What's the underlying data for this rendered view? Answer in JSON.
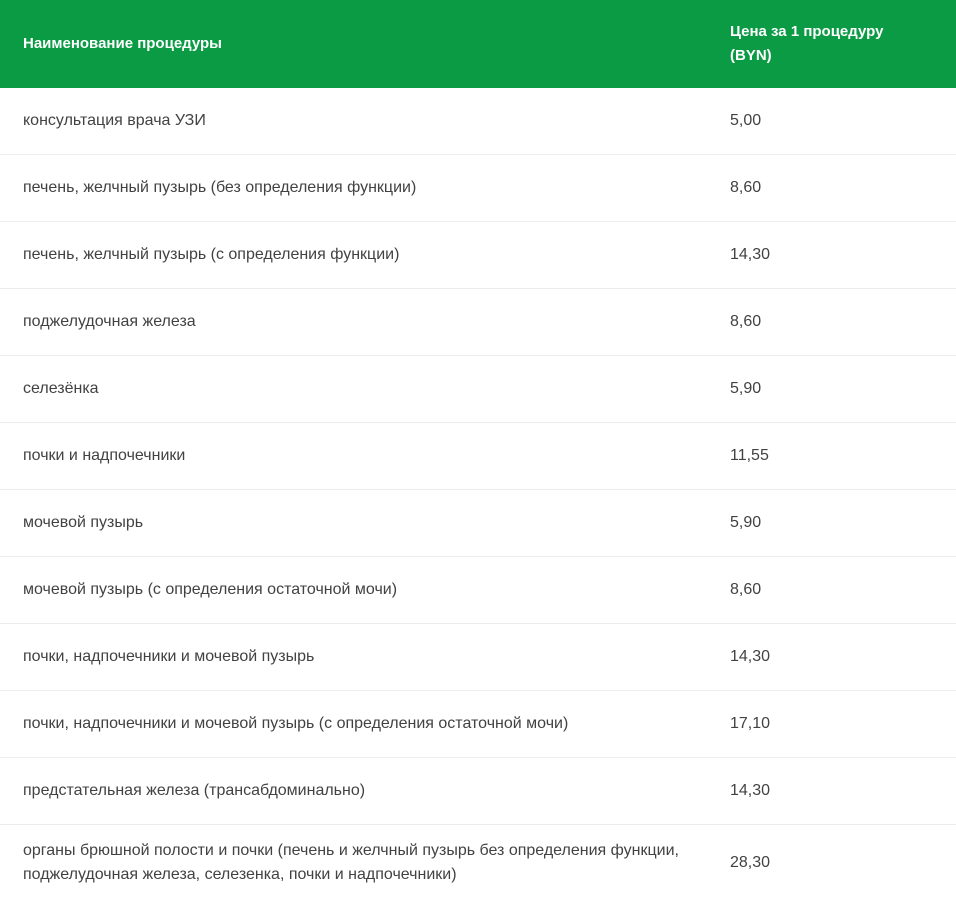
{
  "table": {
    "header": {
      "name_label": "Наименование процедуры",
      "price_label": "Цена за 1 процедуру (BYN)"
    },
    "rows": [
      {
        "name": "консультация врача УЗИ",
        "price": "5,00"
      },
      {
        "name": "печень, желчный пузырь (без определения функции)",
        "price": "8,60"
      },
      {
        "name": "печень, желчный пузырь (с определения функции)",
        "price": "14,30"
      },
      {
        "name": "поджелудочная железа",
        "price": "8,60"
      },
      {
        "name": "селезёнка",
        "price": "5,90"
      },
      {
        "name": "почки и надпочечники",
        "price": "11,55"
      },
      {
        "name": "мочевой пузырь",
        "price": "5,90"
      },
      {
        "name": "мочевой пузырь (с определения остаточной мочи)",
        "price": "8,60"
      },
      {
        "name": "почки, надпочечники и мочевой пузырь",
        "price": "14,30"
      },
      {
        "name": "почки, надпочечники и мочевой пузырь (с определения остаточной мочи)",
        "price": "17,10"
      },
      {
        "name": "предстательная железа (трансабдоминально)",
        "price": "14,30"
      },
      {
        "name": "органы брюшной полости и почки (печень и желчный пузырь без определения функции, поджелудочная железа, селезенка, почки и надпочечники)",
        "price": "28,30"
      }
    ],
    "colors": {
      "header_bg": "#0b9b45",
      "header_text": "#ffffff",
      "row_text": "#424242",
      "divider": "#ececec"
    }
  }
}
